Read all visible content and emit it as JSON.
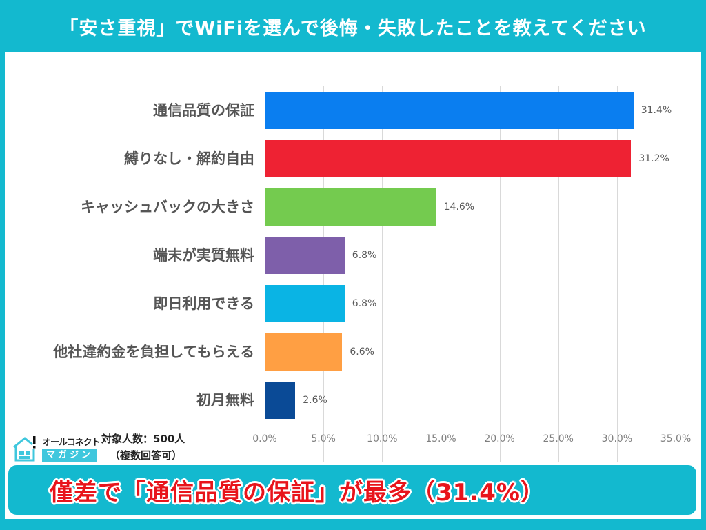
{
  "header": {
    "title": "「安さ重視」でWiFiを選んで後悔・失敗したことを教えてください"
  },
  "logo": {
    "line1": "オールコネクト",
    "line2": "マガジン"
  },
  "sample": {
    "line1": "対象人数：500人",
    "line2": "（複数回答可）"
  },
  "banner": {
    "text": "僅差で「通信品質の保証」が最多（31.4%）"
  },
  "colors": {
    "frame": "#13B9CF",
    "banner_text": "#E8141B"
  },
  "chart_data": {
    "type": "bar",
    "orientation": "horizontal",
    "title": "「安さ重視」でWiFiを選んで後悔・失敗したことを教えてください",
    "xlabel": "",
    "ylabel": "",
    "xlim": [
      0,
      35
    ],
    "grid": true,
    "legend": null,
    "categories": [
      "通信品質の保証",
      "縛りなし・解約自由",
      "キャッシュバックの大きさ",
      "端末が実質無料",
      "即日利用できる",
      "他社違約金を負担してもらえる",
      "初月無料"
    ],
    "values": [
      31.4,
      31.2,
      14.6,
      6.8,
      6.8,
      6.6,
      2.6
    ],
    "value_labels": [
      "31.4%",
      "31.2%",
      "14.6%",
      "6.8%",
      "6.8%",
      "6.6%",
      "2.6%"
    ],
    "bar_colors": [
      "#0A7EF0",
      "#EE2233",
      "#74CB4F",
      "#7E5FAA",
      "#0AB4E4",
      "#FF9F43",
      "#0A4A96"
    ],
    "x_ticks": [
      "0.0%",
      "5.0%",
      "10.0%",
      "15.0%",
      "20.0%",
      "25.0%",
      "30.0%",
      "35.0%"
    ],
    "annotations": [
      "対象人数：500人",
      "（複数回答可）"
    ]
  }
}
